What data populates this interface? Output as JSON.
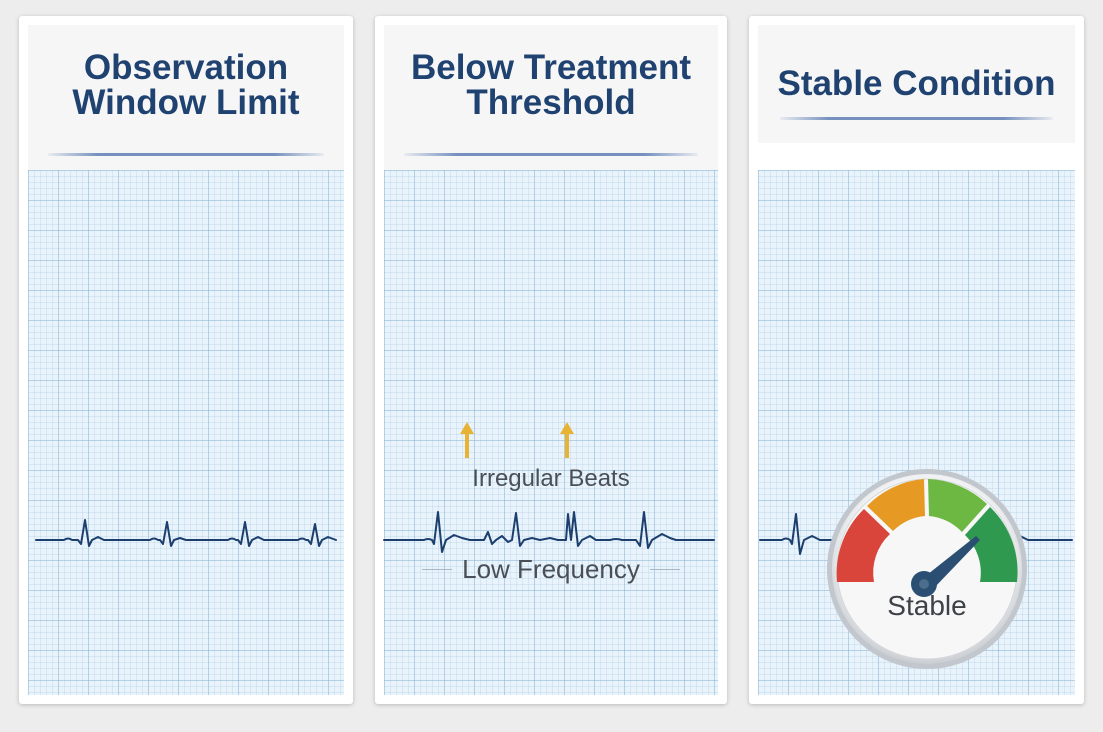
{
  "panels": [
    {
      "title_lines": [
        "Observation",
        "Window Limit"
      ]
    },
    {
      "title_lines": [
        "Below Treatment",
        "Threshold"
      ],
      "annotations": {
        "irregular_beats": "Irregular Beats",
        "low_frequency": "Low Frequency"
      }
    },
    {
      "title_lines": [
        "Stable Condition"
      ],
      "gauge": {
        "label": "Stable",
        "segments": [
          "red",
          "orange",
          "light-green",
          "green"
        ],
        "needle_level_percent": 82
      }
    }
  ],
  "colors": {
    "title": "#1f4271",
    "ecg_trace": "#1d3f6e",
    "arrow": "#e8b233",
    "gauge_red": "#d9453a",
    "gauge_orange": "#e69a23",
    "gauge_light_green": "#6cb843",
    "gauge_green": "#2f9a4f"
  }
}
